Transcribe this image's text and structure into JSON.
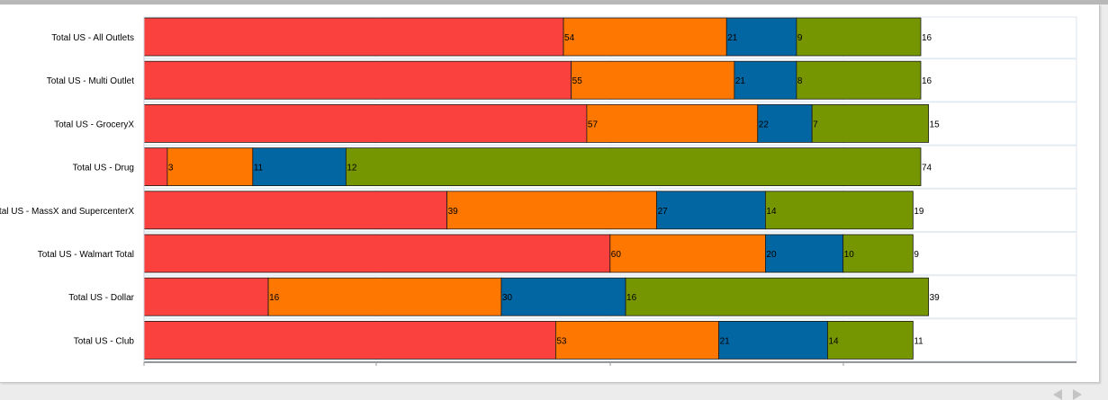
{
  "chart_data": {
    "type": "bar",
    "orientation": "horizontal",
    "stacked": true,
    "categories": [
      "Total US - All Outlets",
      "Total US - Multi Outlet",
      "Total US - GroceryX",
      "Total US - Drug",
      "Total US - MassX and SupercenterX",
      "Total US - Walmart Total",
      "Total US - Dollar",
      "Total US - Club"
    ],
    "series": [
      {
        "color": "#fa413d",
        "values": [
          54,
          55,
          57,
          3,
          39,
          60,
          16,
          53
        ]
      },
      {
        "color": "#fe7700",
        "values": [
          21,
          21,
          22,
          11,
          27,
          20,
          30,
          21
        ]
      },
      {
        "color": "#0266a2",
        "values": [
          9,
          8,
          7,
          12,
          14,
          10,
          16,
          14
        ]
      },
      {
        "color": "#759600",
        "values": [
          16,
          16,
          15,
          74,
          19,
          9,
          39,
          11
        ]
      }
    ],
    "xlim": [
      0,
      100
    ],
    "grid": true,
    "title": "",
    "xlabel": "",
    "ylabel": ""
  }
}
